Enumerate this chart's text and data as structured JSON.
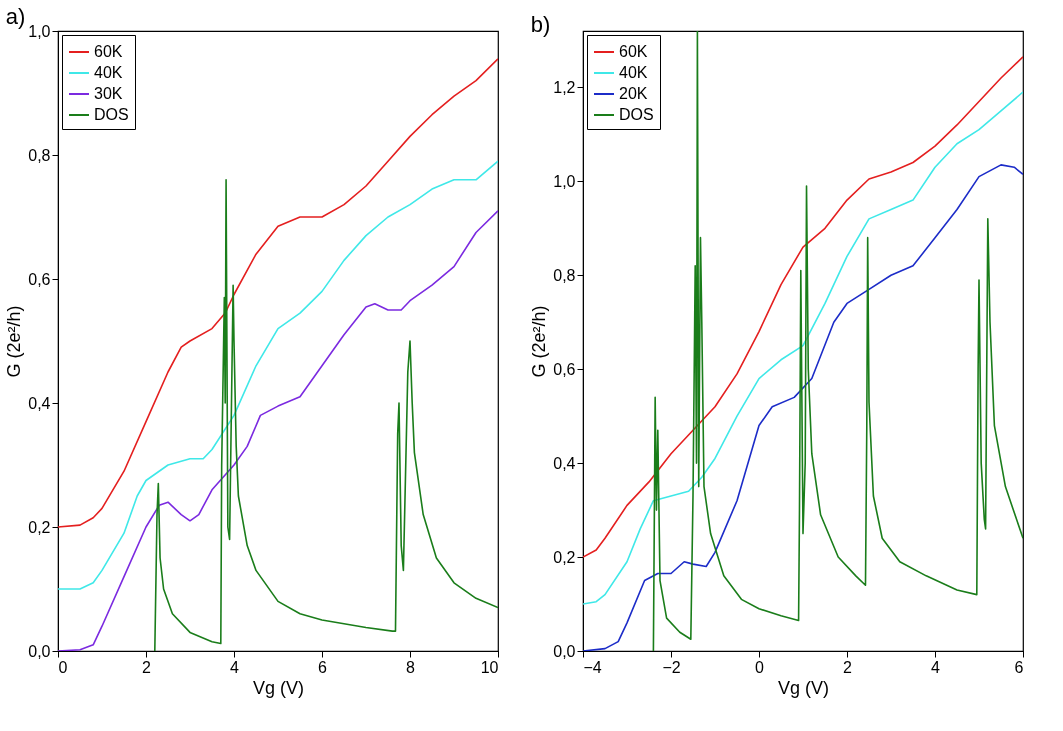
{
  "chart_data": [
    {
      "type": "line",
      "title": "a)",
      "xlabel": "Vg (V)",
      "ylabel": "G (2e²/h)",
      "xlim": [
        0,
        10
      ],
      "ylim": [
        0,
        1.0
      ],
      "xticks": [
        0,
        2,
        4,
        6,
        8,
        10
      ],
      "yticks": [
        {
          "value": 0,
          "label": "0,0"
        },
        {
          "value": 0.2,
          "label": "0,2"
        },
        {
          "value": 0.4,
          "label": "0,4"
        },
        {
          "value": 0.6,
          "label": "0,6"
        },
        {
          "value": 0.8,
          "label": "0,8"
        },
        {
          "value": 1.0,
          "label": "1,0"
        }
      ],
      "grid": false,
      "legend": "top left",
      "marker": "none",
      "line_style": "solid",
      "series": [
        {
          "name": "60K",
          "color": "#e41f1f",
          "x": [
            0,
            0.5,
            0.8,
            1,
            1.5,
            2,
            2.5,
            2.8,
            3,
            3.5,
            3.8,
            4,
            4.5,
            5,
            5.5,
            6,
            6.5,
            7,
            7.5,
            8,
            8.5,
            9,
            9.5,
            10
          ],
          "values": [
            0.2,
            0.203,
            0.215,
            0.23,
            0.29,
            0.37,
            0.45,
            0.49,
            0.5,
            0.52,
            0.545,
            0.575,
            0.64,
            0.685,
            0.7,
            0.7,
            0.72,
            0.75,
            0.79,
            0.83,
            0.865,
            0.895,
            0.92,
            0.955
          ]
        },
        {
          "name": "40K",
          "color": "#3fe8e8",
          "x": [
            0,
            0.5,
            0.8,
            1,
            1.5,
            1.8,
            2,
            2.5,
            3,
            3.3,
            3.5,
            4,
            4.5,
            5,
            5.5,
            6,
            6.5,
            7,
            7.5,
            8,
            8.5,
            9,
            9.5,
            10
          ],
          "values": [
            0.1,
            0.1,
            0.11,
            0.13,
            0.19,
            0.25,
            0.275,
            0.3,
            0.31,
            0.31,
            0.325,
            0.38,
            0.46,
            0.52,
            0.545,
            0.58,
            0.63,
            0.67,
            0.7,
            0.72,
            0.745,
            0.76,
            0.76,
            0.79
          ]
        },
        {
          "name": "30K",
          "color": "#7b2ae0",
          "x": [
            0,
            0.5,
            0.8,
            1,
            1.5,
            2,
            2.3,
            2.5,
            2.8,
            3,
            3.2,
            3.5,
            4,
            4.3,
            4.6,
            5,
            5.5,
            6,
            6.5,
            7,
            7.2,
            7.5,
            7.8,
            8,
            8.5,
            9,
            9.5,
            10
          ],
          "values": [
            0,
            0.002,
            0.01,
            0.04,
            0.12,
            0.2,
            0.235,
            0.24,
            0.22,
            0.21,
            0.22,
            0.26,
            0.3,
            0.33,
            0.38,
            0.395,
            0.41,
            0.46,
            0.51,
            0.555,
            0.56,
            0.55,
            0.55,
            0.565,
            0.59,
            0.62,
            0.675,
            0.71
          ]
        },
        {
          "name": "DOS",
          "color": "#1a7d1a",
          "x": [
            2.2,
            2.25,
            2.28,
            2.32,
            2.4,
            2.6,
            3,
            3.5,
            3.7,
            3.72,
            3.78,
            3.8,
            3.82,
            3.86,
            3.9,
            3.98,
            4.0,
            4.05,
            4.1,
            4.3,
            4.5,
            5,
            5.5,
            6,
            7,
            7.6,
            7.67,
            7.72,
            7.75,
            7.8,
            7.85,
            7.95,
            8.0,
            8.05,
            8.1,
            8.3,
            8.6,
            9,
            9.5,
            10
          ],
          "values": [
            0,
            0.22,
            0.27,
            0.15,
            0.1,
            0.06,
            0.03,
            0.015,
            0.012,
            0.3,
            0.57,
            0.4,
            0.76,
            0.2,
            0.18,
            0.59,
            0.5,
            0.33,
            0.25,
            0.17,
            0.13,
            0.08,
            0.06,
            0.05,
            0.038,
            0.032,
            0.032,
            0.35,
            0.4,
            0.17,
            0.13,
            0.45,
            0.5,
            0.4,
            0.32,
            0.22,
            0.15,
            0.11,
            0.085,
            0.07
          ]
        }
      ]
    },
    {
      "type": "line",
      "title": "b)",
      "xlabel": "Vg (V)",
      "ylabel": "G (2e²/h)",
      "xlim": [
        -4,
        6
      ],
      "ylim": [
        0,
        1.32
      ],
      "xticks": [
        -4,
        -2,
        0,
        2,
        4,
        6
      ],
      "yticks": [
        {
          "value": 0,
          "label": "0,0"
        },
        {
          "value": 0.2,
          "label": "0,2"
        },
        {
          "value": 0.4,
          "label": "0,4"
        },
        {
          "value": 0.6,
          "label": "0,6"
        },
        {
          "value": 0.8,
          "label": "0,8"
        },
        {
          "value": 1.0,
          "label": "1,0"
        },
        {
          "value": 1.2,
          "label": "1,2"
        }
      ],
      "grid": false,
      "legend": "top left",
      "marker": "none",
      "line_style": "solid",
      "series": [
        {
          "name": "60K",
          "color": "#e41f1f",
          "x": [
            -4,
            -3.7,
            -3.5,
            -3,
            -2.5,
            -2,
            -1.5,
            -1,
            -0.5,
            0,
            0.5,
            1,
            1.5,
            2,
            2.5,
            3,
            3.5,
            4,
            4.5,
            5,
            5.5,
            6
          ],
          "values": [
            0.2,
            0.215,
            0.24,
            0.31,
            0.36,
            0.42,
            0.47,
            0.52,
            0.59,
            0.68,
            0.78,
            0.86,
            0.9,
            0.96,
            1.005,
            1.02,
            1.04,
            1.075,
            1.12,
            1.17,
            1.22,
            1.265
          ]
        },
        {
          "name": "40K",
          "color": "#3fe8e8",
          "x": [
            -4,
            -3.7,
            -3.5,
            -3,
            -2.7,
            -2.4,
            -2,
            -1.6,
            -1.3,
            -1,
            -0.5,
            0,
            0.5,
            1,
            1.5,
            2,
            2.5,
            3,
            3.5,
            4,
            4.5,
            5,
            5.5,
            6
          ],
          "values": [
            0.1,
            0.105,
            0.12,
            0.19,
            0.26,
            0.32,
            0.33,
            0.34,
            0.37,
            0.41,
            0.5,
            0.58,
            0.62,
            0.65,
            0.74,
            0.84,
            0.92,
            0.94,
            0.96,
            1.03,
            1.08,
            1.11,
            1.15,
            1.19
          ]
        },
        {
          "name": "20K",
          "color": "#1c2cc8",
          "x": [
            -4,
            -3.5,
            -3.2,
            -3,
            -2.6,
            -2.3,
            -2,
            -1.7,
            -1.5,
            -1.2,
            -1,
            -0.5,
            0,
            0.3,
            0.8,
            1.2,
            1.7,
            2,
            2.5,
            3,
            3.5,
            4,
            4.5,
            5,
            5.5,
            5.8,
            6
          ],
          "values": [
            0,
            0.005,
            0.02,
            0.06,
            0.15,
            0.165,
            0.165,
            0.19,
            0.185,
            0.18,
            0.21,
            0.32,
            0.48,
            0.52,
            0.54,
            0.58,
            0.7,
            0.74,
            0.77,
            0.8,
            0.82,
            0.88,
            0.94,
            1.01,
            1.035,
            1.03,
            1.015
          ]
        },
        {
          "name": "DOS",
          "color": "#1a7d1a",
          "x": [
            -2.4,
            -2.36,
            -2.33,
            -2.3,
            -2.25,
            -2.1,
            -1.8,
            -1.55,
            -1.5,
            -1.45,
            -1.42,
            -1.4,
            -1.37,
            -1.33,
            -1.3,
            -1.25,
            -1.1,
            -0.8,
            -0.4,
            0,
            0.5,
            0.9,
            0.92,
            0.95,
            1.0,
            1.05,
            1.08,
            1.12,
            1.2,
            1.4,
            1.8,
            2.2,
            2.42,
            2.45,
            2.47,
            2.5,
            2.6,
            2.8,
            3.2,
            3.8,
            4.5,
            4.95,
            4.98,
            5.0,
            5.05,
            5.12,
            5.15,
            5.2,
            5.25,
            5.35,
            5.6,
            6
          ],
          "values": [
            0,
            0.54,
            0.3,
            0.47,
            0.15,
            0.07,
            0.04,
            0.025,
            0.33,
            0.82,
            0.4,
            1.32,
            0.35,
            0.88,
            0.7,
            0.35,
            0.25,
            0.16,
            0.11,
            0.09,
            0.075,
            0.065,
            0.3,
            0.81,
            0.25,
            0.4,
            0.99,
            0.6,
            0.42,
            0.29,
            0.2,
            0.16,
            0.14,
            0.48,
            0.88,
            0.53,
            0.33,
            0.24,
            0.19,
            0.16,
            0.13,
            0.12,
            0.6,
            0.79,
            0.4,
            0.28,
            0.26,
            0.92,
            0.7,
            0.48,
            0.35,
            0.24
          ]
        }
      ]
    }
  ]
}
